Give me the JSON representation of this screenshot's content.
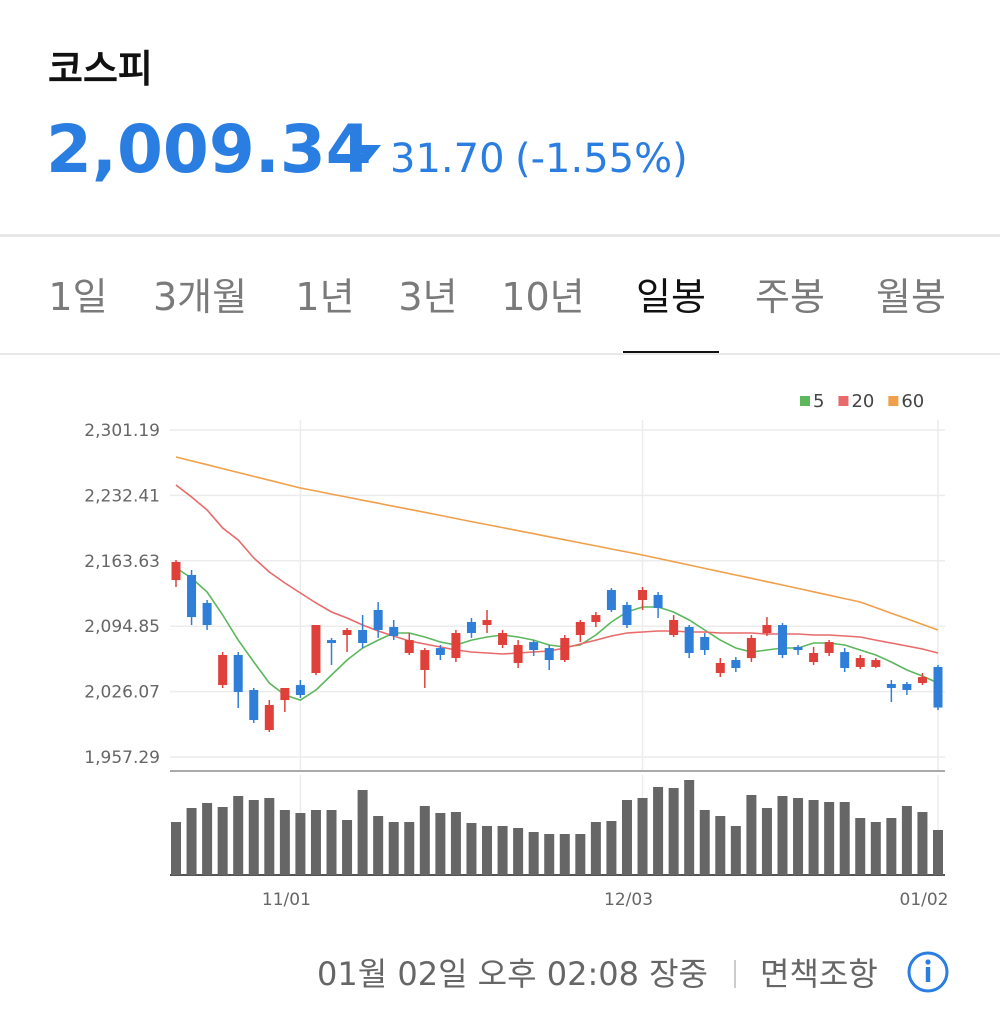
{
  "header": {
    "title": "코스피",
    "price": "2,009.34",
    "change": "31.70",
    "change_pct": "(-1.55%)"
  },
  "tabs": [
    "1일",
    "3개월",
    "1년",
    "3년",
    "10년",
    "일봉",
    "주봉",
    "월봉"
  ],
  "selected_tab": 5,
  "footer": {
    "timestamp": "01월 02일 오후 02:08 장중",
    "disclaimer": "면책조항"
  },
  "chart_data": {
    "type": "candlestick",
    "categories": [
      null,
      null,
      null,
      null,
      null,
      null,
      null,
      null,
      "11/01",
      null,
      null,
      null,
      null,
      null,
      null,
      null,
      null,
      null,
      null,
      null,
      null,
      null,
      null,
      null,
      null,
      null,
      null,
      null,
      null,
      null,
      "12/03",
      null,
      null,
      null,
      null,
      null,
      null,
      null,
      null,
      null,
      null,
      null,
      null,
      null,
      null,
      null,
      null,
      null,
      null,
      "01/02"
    ],
    "open": [
      2143.4,
      2148.7,
      2119.3,
      2033.0,
      2064.6,
      2027.8,
      1985.7,
      2017.2,
      2033.0,
      2045.6,
      2080.3,
      2085.6,
      2090.9,
      2111.9,
      2094.0,
      2066.7,
      2048.8,
      2071.9,
      2061.4,
      2099.3,
      2096.1,
      2075.1,
      2056.2,
      2078.2,
      2071.9,
      2059.3,
      2085.6,
      2099.3,
      2132.9,
      2117.2,
      2122.4,
      2127.7,
      2085.6,
      2094.0,
      2083.5,
      2045.6,
      2059.3,
      2061.4,
      2087.7,
      2096.1,
      2073.0,
      2057.2,
      2066.7,
      2067.7,
      2052.0,
      2052.0,
      2034.1,
      2034.1,
      2035.1,
      2052.0
    ],
    "high": [
      2164.5,
      2154.0,
      2122.4,
      2067.7,
      2067.7,
      2029.9,
      2017.2,
      2029.9,
      2038.3,
      2096.1,
      2082.5,
      2093.0,
      2106.6,
      2120.3,
      2101.4,
      2087.7,
      2071.9,
      2075.1,
      2090.9,
      2103.5,
      2111.9,
      2090.9,
      2080.3,
      2080.3,
      2075.1,
      2085.6,
      2101.4,
      2109.8,
      2135.0,
      2120.3,
      2136.1,
      2130.8,
      2106.6,
      2096.1,
      2087.7,
      2061.4,
      2062.5,
      2085.6,
      2104.5,
      2098.2,
      2075.1,
      2073.0,
      2080.3,
      2071.9,
      2064.6,
      2061.4,
      2038.3,
      2036.2,
      2045.6,
      2054.1
    ],
    "low": [
      2136.1,
      2096.1,
      2090.9,
      2029.9,
      2008.8,
      1993.1,
      1983.6,
      2004.6,
      2019.4,
      2043.5,
      2054.1,
      2067.7,
      2071.9,
      2082.5,
      2080.3,
      2064.6,
      2029.9,
      2059.3,
      2057.2,
      2082.5,
      2087.7,
      2071.9,
      2050.9,
      2063.5,
      2048.8,
      2057.2,
      2078.2,
      2094.0,
      2109.8,
      2093.0,
      2111.9,
      2103.5,
      2083.5,
      2061.4,
      2064.6,
      2041.4,
      2046.7,
      2057.2,
      2084.6,
      2061.4,
      2064.6,
      2054.1,
      2063.5,
      2046.7,
      2049.8,
      2050.9,
      2015.1,
      2022.5,
      2033.0,
      2006.7
    ],
    "close": [
      2162.4,
      2104.5,
      2096.1,
      2064.6,
      2025.7,
      1996.2,
      2012.0,
      2029.9,
      2022.5,
      2096.1,
      2077.2,
      2090.9,
      2077.2,
      2090.9,
      2084.6,
      2080.3,
      2069.8,
      2064.6,
      2087.7,
      2087.7,
      2101.4,
      2087.7,
      2075.1,
      2069.8,
      2059.3,
      2082.5,
      2099.3,
      2106.6,
      2111.9,
      2096.1,
      2132.9,
      2114.0,
      2101.4,
      2066.7,
      2069.8,
      2056.2,
      2050.9,
      2082.5,
      2096.1,
      2064.6,
      2069.8,
      2066.7,
      2078.2,
      2050.9,
      2061.4,
      2059.3,
      2029.9,
      2027.8,
      2041.4,
      2009.34
    ],
    "up_color": "#e0403a",
    "down_color": "#2f7fd8",
    "series": [
      {
        "name": "5",
        "color": "#5cb85c",
        "values": [
          2156.1,
          2145.6,
          2130.8,
          2106.6,
          2080.3,
          2057.2,
          2035.1,
          2022.5,
          2017.2,
          2027.8,
          2043.5,
          2059.3,
          2071.9,
          2080.3,
          2087.7,
          2087.7,
          2083.5,
          2078.2,
          2075.1,
          2080.3,
          2083.5,
          2085.6,
          2083.5,
          2080.3,
          2075.1,
          2073.0,
          2075.1,
          2085.6,
          2099.3,
          2109.8,
          2115.1,
          2115.1,
          2109.8,
          2101.4,
          2090.9,
          2080.3,
          2071.9,
          2067.7,
          2069.8,
          2071.9,
          2071.9,
          2077.2,
          2077.2,
          2075.1,
          2069.8,
          2064.6,
          2057.2,
          2048.8,
          2042.5,
          2035.1
        ]
      },
      {
        "name": "20",
        "color": "#e86a6a",
        "values": [
          2243.4,
          2230.7,
          2217.1,
          2198.1,
          2185.5,
          2166.6,
          2151.9,
          2140.3,
          2129.8,
          2119.3,
          2109.8,
          2103.5,
          2096.1,
          2089.8,
          2084.6,
          2079.3,
          2076.1,
          2073.0,
          2069.8,
          2067.7,
          2066.7,
          2065.6,
          2066.7,
          2067.7,
          2068.8,
          2071.9,
          2076.1,
          2080.3,
          2084.6,
          2087.7,
          2088.8,
          2089.8,
          2089.8,
          2088.8,
          2088.8,
          2087.7,
          2087.7,
          2087.7,
          2086.7,
          2086.7,
          2086.7,
          2085.6,
          2085.6,
          2084.6,
          2083.5,
          2080.3,
          2077.2,
          2074.0,
          2070.9,
          2066.7
        ]
      },
      {
        "name": "60",
        "color": "#f0a04b",
        "values": [
          2272.8,
          2268.7,
          2264.7,
          2260.6,
          2256.5,
          2252.4,
          2248.4,
          2244.3,
          2240.2,
          2237.0,
          2233.8,
          2230.6,
          2227.4,
          2224.2,
          2221.0,
          2217.8,
          2214.6,
          2211.4,
          2208.1,
          2204.9,
          2201.7,
          2198.5,
          2195.3,
          2192.1,
          2188.9,
          2185.7,
          2182.5,
          2179.3,
          2176.1,
          2172.9,
          2169.7,
          2166.2,
          2162.7,
          2159.2,
          2155.7,
          2152.2,
          2148.7,
          2145.2,
          2141.7,
          2138.2,
          2134.6,
          2131.0,
          2127.5,
          2123.9,
          2120.3,
          2114.4,
          2108.5,
          2102.7,
          2096.8,
          2090.9
        ]
      }
    ],
    "volume": [
      53,
      67,
      72,
      68,
      79,
      75,
      77,
      65,
      62,
      65,
      65,
      55,
      85,
      59,
      53,
      53,
      69,
      62,
      63,
      52,
      49,
      49,
      47,
      43,
      41,
      41,
      41,
      53,
      54,
      75,
      77,
      88,
      87,
      95,
      65,
      59,
      49,
      80,
      67,
      79,
      77,
      75,
      73,
      73,
      57,
      53,
      57,
      69,
      63,
      45
    ],
    "volume_lim": [
      0,
      100
    ],
    "volume_color": "#666666",
    "ylim": [
      1942.6,
      2311.7
    ],
    "yticks": [
      {
        "value": 2301.19,
        "label": "2,301.19"
      },
      {
        "value": 2232.41,
        "label": "2,232.41"
      },
      {
        "value": 2163.63,
        "label": "2,163.63"
      },
      {
        "value": 2094.85,
        "label": "2,094.85"
      },
      {
        "value": 2026.07,
        "label": "2,026.07"
      },
      {
        "value": 1957.29,
        "label": "1,957.29"
      }
    ],
    "grid": true,
    "legend": "top-right"
  }
}
